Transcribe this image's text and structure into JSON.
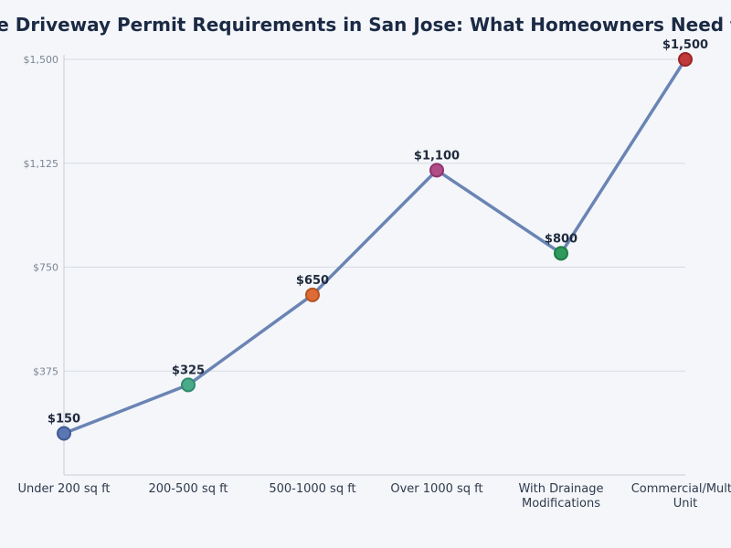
{
  "chart_data": {
    "type": "line",
    "title": "Concrete Driveway Permit Requirements in San Jose: What Homeowners Need to Know",
    "xlabel": "",
    "ylabel": "",
    "categories": [
      [
        "Under 200 sq ft"
      ],
      [
        "200-500 sq ft"
      ],
      [
        "500-1000 sq ft"
      ],
      [
        "Over 1000 sq ft"
      ],
      [
        "With Drainage",
        "Modifications"
      ],
      [
        "Commercial/Multi-",
        "Unit"
      ]
    ],
    "values": [
      150,
      325,
      650,
      1100,
      800,
      1500
    ],
    "data_labels": [
      "$150",
      "$325",
      "$650",
      "$1,100",
      "$800",
      "$1,500"
    ],
    "ylim": [
      0,
      1500
    ],
    "yticks": [
      375,
      750,
      1125,
      1500
    ],
    "ytick_labels": [
      "$375",
      "$750",
      "$1,125",
      "$1,500"
    ],
    "grid": true,
    "line_color": "#6a84b4",
    "point_colors": [
      "#5b77b3",
      "#4aab8b",
      "#de6b35",
      "#b14d86",
      "#2f9a5c",
      "#c0393b"
    ],
    "point_stroke_colors": [
      "#3f5a94",
      "#2f8b6c",
      "#b4521f",
      "#8f336a",
      "#1f7b45",
      "#9a2426"
    ]
  }
}
